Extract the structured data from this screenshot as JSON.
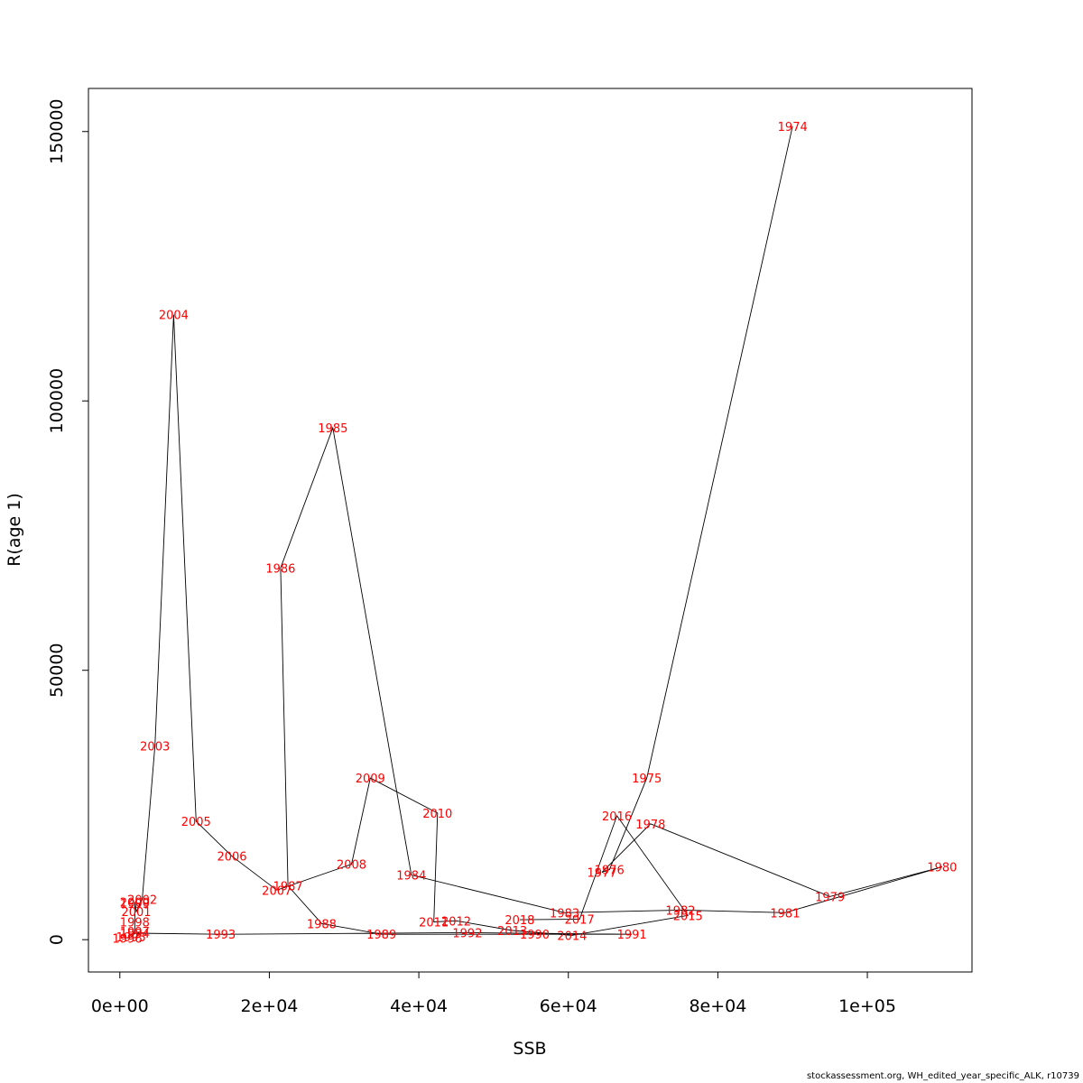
{
  "footer_text": "stockassessment.org, WH_edited_year_specific_ALK, r10739",
  "chart_data": {
    "type": "line",
    "xlabel": "SSB",
    "ylabel": "R(age 1)",
    "xlim": [
      -4200,
      114000
    ],
    "ylim": [
      -6000,
      158000
    ],
    "x_ticks": [
      0,
      20000,
      40000,
      60000,
      80000,
      100000
    ],
    "x_tick_labels": [
      "0e+00",
      "2e+04",
      "4e+04",
      "6e+04",
      "8e+04",
      "1e+05"
    ],
    "y_ticks": [
      0,
      50000,
      100000,
      150000
    ],
    "y_tick_labels": [
      "0",
      "50000",
      "100000",
      "150000"
    ],
    "line_color": "#000000",
    "label_color": "#ff0000",
    "series": [
      {
        "points": [
          {
            "year": "1974",
            "x": 90000,
            "y": 151000
          },
          {
            "year": "1975",
            "x": 70500,
            "y": 30000
          },
          {
            "year": "1976",
            "x": 65500,
            "y": 13000
          },
          {
            "year": "1977",
            "x": 64500,
            "y": 12500
          },
          {
            "year": "1978",
            "x": 71000,
            "y": 21500
          },
          {
            "year": "1979",
            "x": 95000,
            "y": 8000
          },
          {
            "year": "1980",
            "x": 110000,
            "y": 13500
          },
          {
            "year": "1981",
            "x": 89000,
            "y": 5000
          },
          {
            "year": "1982",
            "x": 75000,
            "y": 5500
          },
          {
            "year": "1983",
            "x": 59500,
            "y": 5000
          },
          {
            "year": "1984",
            "x": 39000,
            "y": 12000
          },
          {
            "year": "1985",
            "x": 28500,
            "y": 95000
          },
          {
            "year": "1986",
            "x": 21500,
            "y": 69000
          },
          {
            "year": "1987",
            "x": 22500,
            "y": 10000
          },
          {
            "year": "1988",
            "x": 27000,
            "y": 3000
          },
          {
            "year": "1989",
            "x": 35000,
            "y": 1000
          },
          {
            "year": "1990",
            "x": 55500,
            "y": 1000
          },
          {
            "year": "1991",
            "x": 68500,
            "y": 1000
          },
          {
            "year": "1992",
            "x": 46500,
            "y": 1300
          },
          {
            "year": "1993",
            "x": 13500,
            "y": 1000
          },
          {
            "year": "1994",
            "x": 2000,
            "y": 1200
          },
          {
            "year": "1995",
            "x": 1500,
            "y": 500
          },
          {
            "year": "1996",
            "x": 1000,
            "y": 300
          },
          {
            "year": "1997",
            "x": 2000,
            "y": 1500
          },
          {
            "year": "1998",
            "x": 2000,
            "y": 3300
          },
          {
            "year": "1999",
            "x": 2000,
            "y": 6700
          },
          {
            "year": "2000",
            "x": 2000,
            "y": 7000
          },
          {
            "year": "2001",
            "x": 2200,
            "y": 5200
          },
          {
            "year": "2002",
            "x": 3000,
            "y": 7500
          },
          {
            "year": "2003",
            "x": 4700,
            "y": 36000
          },
          {
            "year": "2004",
            "x": 7200,
            "y": 116000
          },
          {
            "year": "2005",
            "x": 10200,
            "y": 22000
          },
          {
            "year": "2006",
            "x": 15000,
            "y": 15500
          },
          {
            "year": "2007",
            "x": 21000,
            "y": 9200
          },
          {
            "year": "2008",
            "x": 31000,
            "y": 14000
          },
          {
            "year": "2009",
            "x": 33500,
            "y": 30000
          },
          {
            "year": "2010",
            "x": 42500,
            "y": 23500
          },
          {
            "year": "2011",
            "x": 42000,
            "y": 3300
          },
          {
            "year": "2012",
            "x": 45000,
            "y": 3500
          },
          {
            "year": "2013",
            "x": 52500,
            "y": 1700
          },
          {
            "year": "2014",
            "x": 60500,
            "y": 800
          },
          {
            "year": "2015",
            "x": 76000,
            "y": 4500
          },
          {
            "year": "2016",
            "x": 66500,
            "y": 23000
          },
          {
            "year": "2017",
            "x": 61500,
            "y": 3800
          },
          {
            "year": "2018",
            "x": 53500,
            "y": 3700
          }
        ]
      }
    ]
  }
}
